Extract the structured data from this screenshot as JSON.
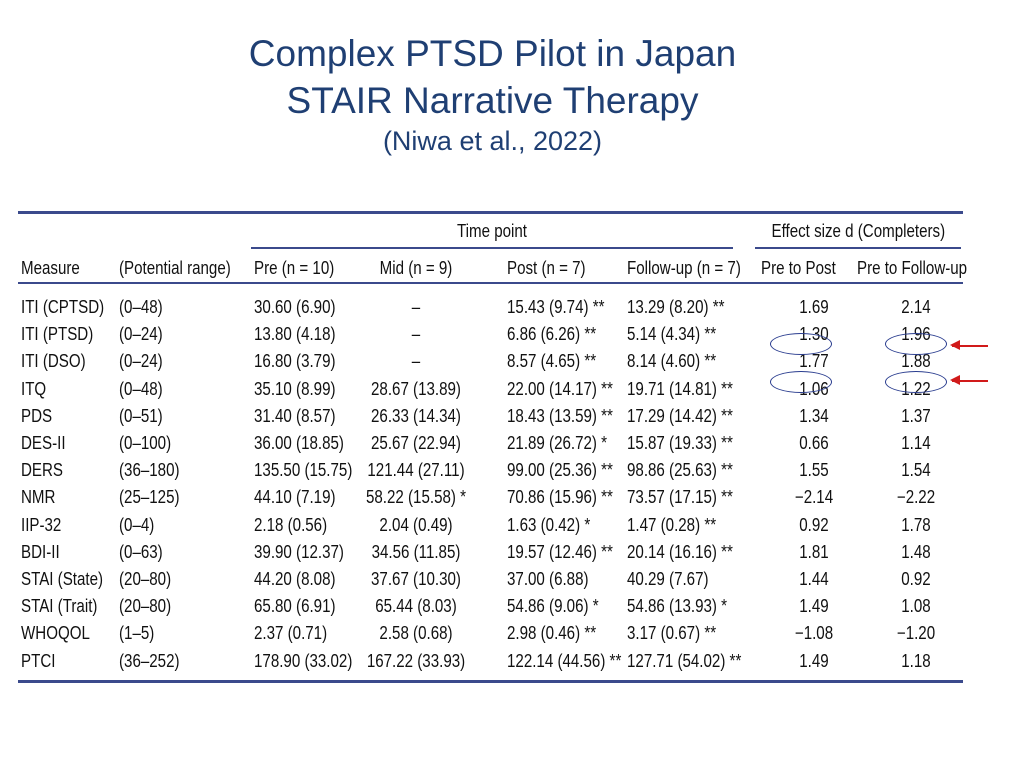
{
  "slide": {
    "title_line1": "Complex PTSD Pilot in Japan",
    "title_line2": "STAIR Narrative Therapy",
    "citation": "(Niwa et al., 2022)"
  },
  "table": {
    "group_headers": {
      "time_point": "Time point",
      "effect_size": "Effect size d (Completers)"
    },
    "columns": [
      "Measure",
      "(Potential range)",
      "Pre (n = 10)",
      "Mid (n = 9)",
      "Post (n = 7)",
      "Follow-up (n = 7)",
      "Pre to Post",
      "Pre to Follow-up"
    ],
    "rows": [
      [
        "ITI (CPTSD)",
        "(0–48)",
        "30.60 (6.90)",
        "–",
        "15.43 (9.74) **",
        "13.29 (8.20) **",
        "1.69",
        "2.14"
      ],
      [
        "ITI (PTSD)",
        "(0–24)",
        "13.80 (4.18)",
        "–",
        "6.86 (6.26) **",
        "5.14 (4.34) **",
        "1.30",
        "1.96"
      ],
      [
        "ITI (DSO)",
        "(0–24)",
        "16.80 (3.79)",
        "–",
        "8.57 (4.65) **",
        "8.14 (4.60) **",
        "1.77",
        "1.88"
      ],
      [
        "ITQ",
        "(0–48)",
        "35.10 (8.99)",
        "28.67 (13.89)",
        "22.00 (14.17) **",
        "19.71 (14.81) **",
        "1.06",
        "1.22"
      ],
      [
        "PDS",
        "(0–51)",
        "31.40 (8.57)",
        "26.33 (14.34)",
        "18.43 (13.59) **",
        "17.29 (14.42) **",
        "1.34",
        "1.37"
      ],
      [
        "DES-II",
        "(0–100)",
        "36.00 (18.85)",
        "25.67 (22.94)",
        "21.89 (26.72) *",
        "15.87 (19.33) **",
        "0.66",
        "1.14"
      ],
      [
        "DERS",
        "(36–180)",
        "135.50 (15.75)",
        "121.44 (27.11)",
        "99.00 (25.36) **",
        "98.86 (25.63) **",
        "1.55",
        "1.54"
      ],
      [
        "NMR",
        "(25–125)",
        "44.10 (7.19)",
        "58.22 (15.58) *",
        "70.86 (15.96) **",
        "73.57 (17.15) **",
        "−2.14",
        "−2.22"
      ],
      [
        "IIP-32",
        "(0–4)",
        "2.18 (0.56)",
        "2.04 (0.49)",
        "1.63 (0.42) *",
        "1.47 (0.28) **",
        "0.92",
        "1.78"
      ],
      [
        "BDI-II",
        "(0–63)",
        "39.90 (12.37)",
        "34.56 (11.85)",
        "19.57 (12.46) **",
        "20.14 (16.16) **",
        "1.81",
        "1.48"
      ],
      [
        "STAI (State)",
        "(20–80)",
        "44.20 (8.08)",
        "37.67 (10.30)",
        "37.00 (6.88)",
        "40.29 (7.67)",
        "1.44",
        "0.92"
      ],
      [
        "STAI (Trait)",
        "(20–80)",
        "65.80 (6.91)",
        "65.44 (8.03)",
        "54.86 (9.06) *",
        "54.86 (13.93) *",
        "1.49",
        "1.08"
      ],
      [
        "WHOQOL",
        "(1–5)",
        "2.37 (0.71)",
        "2.58 (0.68)",
        "2.98 (0.46) **",
        "3.17 (0.67) **",
        "−1.08",
        "−1.20"
      ],
      [
        "PTCI",
        "(36–252)",
        "178.90 (33.02)",
        "167.22 (33.93)",
        "122.14 (44.56) **",
        "127.71 (54.02) **",
        "1.49",
        "1.18"
      ]
    ]
  },
  "annotations": {
    "circled": [
      "ITI (PTSD) Pre to Post",
      "ITI (PTSD) Pre to Follow-up",
      "ITQ Pre to Post",
      "ITQ Pre to Follow-up"
    ],
    "arrow_color": "#d11a1a",
    "circle_color": "#2a3d8f",
    "title_color": "#1f3f73",
    "rule_color": "#3b4a8c"
  }
}
